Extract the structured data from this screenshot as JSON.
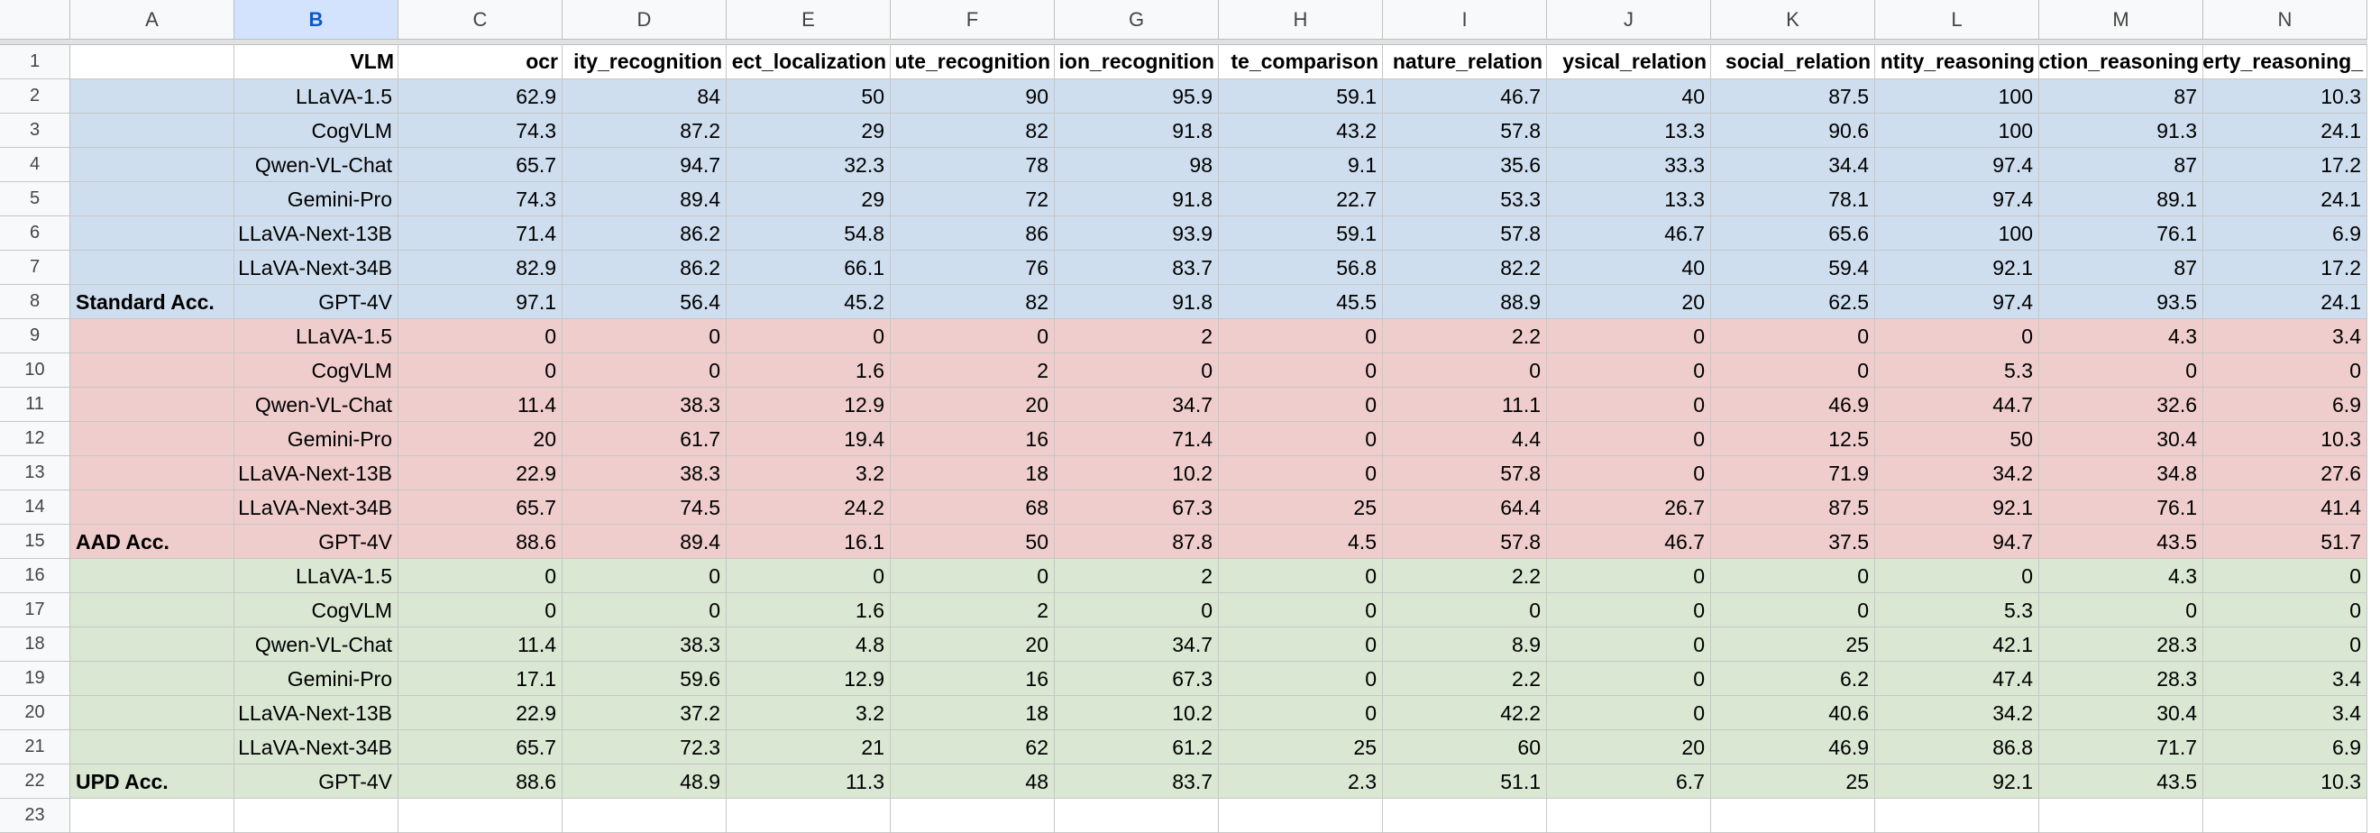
{
  "columns": [
    "A",
    "B",
    "C",
    "D",
    "E",
    "F",
    "G",
    "H",
    "I",
    "J",
    "K",
    "L",
    "M",
    "N"
  ],
  "selected_column": "B",
  "row_numbers": [
    1,
    2,
    3,
    4,
    5,
    6,
    7,
    8,
    9,
    10,
    11,
    12,
    13,
    14,
    15,
    16,
    17,
    18,
    19,
    20,
    21,
    22,
    23
  ],
  "header_row": [
    "",
    "VLM",
    "ocr",
    "ity_recognition",
    "ect_localization",
    "ute_recognition",
    "ion_recognition",
    "te_comparison",
    "nature_relation",
    "ysical_relation",
    "social_relation",
    "ntity_reasoning",
    "ction_reasoning",
    "erty_reasoning_"
  ],
  "colors": {
    "standard": "#cfdeee",
    "aad": "#efcdcd",
    "upd": "#d9e7d3",
    "selected_header": "#d3e3fd"
  },
  "groups": [
    {
      "label": "Standard Acc.",
      "color": "blue",
      "rows": [
        {
          "vlm": "LLaVA-1.5",
          "values": [
            "62.9",
            "84",
            "50",
            "90",
            "95.9",
            "59.1",
            "46.7",
            "40",
            "87.5",
            "100",
            "87",
            "10.3"
          ]
        },
        {
          "vlm": "CogVLM",
          "values": [
            "74.3",
            "87.2",
            "29",
            "82",
            "91.8",
            "43.2",
            "57.8",
            "13.3",
            "90.6",
            "100",
            "91.3",
            "24.1"
          ]
        },
        {
          "vlm": "Qwen-VL-Chat",
          "values": [
            "65.7",
            "94.7",
            "32.3",
            "78",
            "98",
            "9.1",
            "35.6",
            "33.3",
            "34.4",
            "97.4",
            "87",
            "17.2"
          ]
        },
        {
          "vlm": "Gemini-Pro",
          "values": [
            "74.3",
            "89.4",
            "29",
            "72",
            "91.8",
            "22.7",
            "53.3",
            "13.3",
            "78.1",
            "97.4",
            "89.1",
            "24.1"
          ]
        },
        {
          "vlm": "LLaVA-Next-13B",
          "values": [
            "71.4",
            "86.2",
            "54.8",
            "86",
            "93.9",
            "59.1",
            "57.8",
            "46.7",
            "65.6",
            "100",
            "76.1",
            "6.9"
          ]
        },
        {
          "vlm": "LLaVA-Next-34B",
          "values": [
            "82.9",
            "86.2",
            "66.1",
            "76",
            "83.7",
            "56.8",
            "82.2",
            "40",
            "59.4",
            "92.1",
            "87",
            "17.2"
          ]
        },
        {
          "vlm": "GPT-4V",
          "values": [
            "97.1",
            "56.4",
            "45.2",
            "82",
            "91.8",
            "45.5",
            "88.9",
            "20",
            "62.5",
            "97.4",
            "93.5",
            "24.1"
          ]
        }
      ]
    },
    {
      "label": "AAD Acc.",
      "color": "red",
      "rows": [
        {
          "vlm": "LLaVA-1.5",
          "values": [
            "0",
            "0",
            "0",
            "0",
            "2",
            "0",
            "2.2",
            "0",
            "0",
            "0",
            "4.3",
            "3.4"
          ]
        },
        {
          "vlm": "CogVLM",
          "values": [
            "0",
            "0",
            "1.6",
            "2",
            "0",
            "0",
            "0",
            "0",
            "0",
            "5.3",
            "0",
            "0"
          ]
        },
        {
          "vlm": "Qwen-VL-Chat",
          "values": [
            "11.4",
            "38.3",
            "12.9",
            "20",
            "34.7",
            "0",
            "11.1",
            "0",
            "46.9",
            "44.7",
            "32.6",
            "6.9"
          ]
        },
        {
          "vlm": "Gemini-Pro",
          "values": [
            "20",
            "61.7",
            "19.4",
            "16",
            "71.4",
            "0",
            "4.4",
            "0",
            "12.5",
            "50",
            "30.4",
            "10.3"
          ]
        },
        {
          "vlm": "LLaVA-Next-13B",
          "values": [
            "22.9",
            "38.3",
            "3.2",
            "18",
            "10.2",
            "0",
            "57.8",
            "0",
            "71.9",
            "34.2",
            "34.8",
            "27.6"
          ]
        },
        {
          "vlm": "LLaVA-Next-34B",
          "values": [
            "65.7",
            "74.5",
            "24.2",
            "68",
            "67.3",
            "25",
            "64.4",
            "26.7",
            "87.5",
            "92.1",
            "76.1",
            "41.4"
          ]
        },
        {
          "vlm": "GPT-4V",
          "values": [
            "88.6",
            "89.4",
            "16.1",
            "50",
            "87.8",
            "4.5",
            "57.8",
            "46.7",
            "37.5",
            "94.7",
            "43.5",
            "51.7"
          ]
        }
      ]
    },
    {
      "label": "UPD Acc.",
      "color": "green",
      "rows": [
        {
          "vlm": "LLaVA-1.5",
          "values": [
            "0",
            "0",
            "0",
            "0",
            "2",
            "0",
            "2.2",
            "0",
            "0",
            "0",
            "4.3",
            "0"
          ]
        },
        {
          "vlm": "CogVLM",
          "values": [
            "0",
            "0",
            "1.6",
            "2",
            "0",
            "0",
            "0",
            "0",
            "0",
            "5.3",
            "0",
            "0"
          ]
        },
        {
          "vlm": "Qwen-VL-Chat",
          "values": [
            "11.4",
            "38.3",
            "4.8",
            "20",
            "34.7",
            "0",
            "8.9",
            "0",
            "25",
            "42.1",
            "28.3",
            "0"
          ]
        },
        {
          "vlm": "Gemini-Pro",
          "values": [
            "17.1",
            "59.6",
            "12.9",
            "16",
            "67.3",
            "0",
            "2.2",
            "0",
            "6.2",
            "47.4",
            "28.3",
            "3.4"
          ]
        },
        {
          "vlm": "LLaVA-Next-13B",
          "values": [
            "22.9",
            "37.2",
            "3.2",
            "18",
            "10.2",
            "0",
            "42.2",
            "0",
            "40.6",
            "34.2",
            "30.4",
            "3.4"
          ]
        },
        {
          "vlm": "LLaVA-Next-34B",
          "values": [
            "65.7",
            "72.3",
            "21",
            "62",
            "61.2",
            "25",
            "60",
            "20",
            "46.9",
            "86.8",
            "71.7",
            "6.9"
          ]
        },
        {
          "vlm": "GPT-4V",
          "values": [
            "88.6",
            "48.9",
            "11.3",
            "48",
            "83.7",
            "2.3",
            "51.1",
            "6.7",
            "25",
            "92.1",
            "43.5",
            "10.3"
          ]
        }
      ]
    }
  ]
}
